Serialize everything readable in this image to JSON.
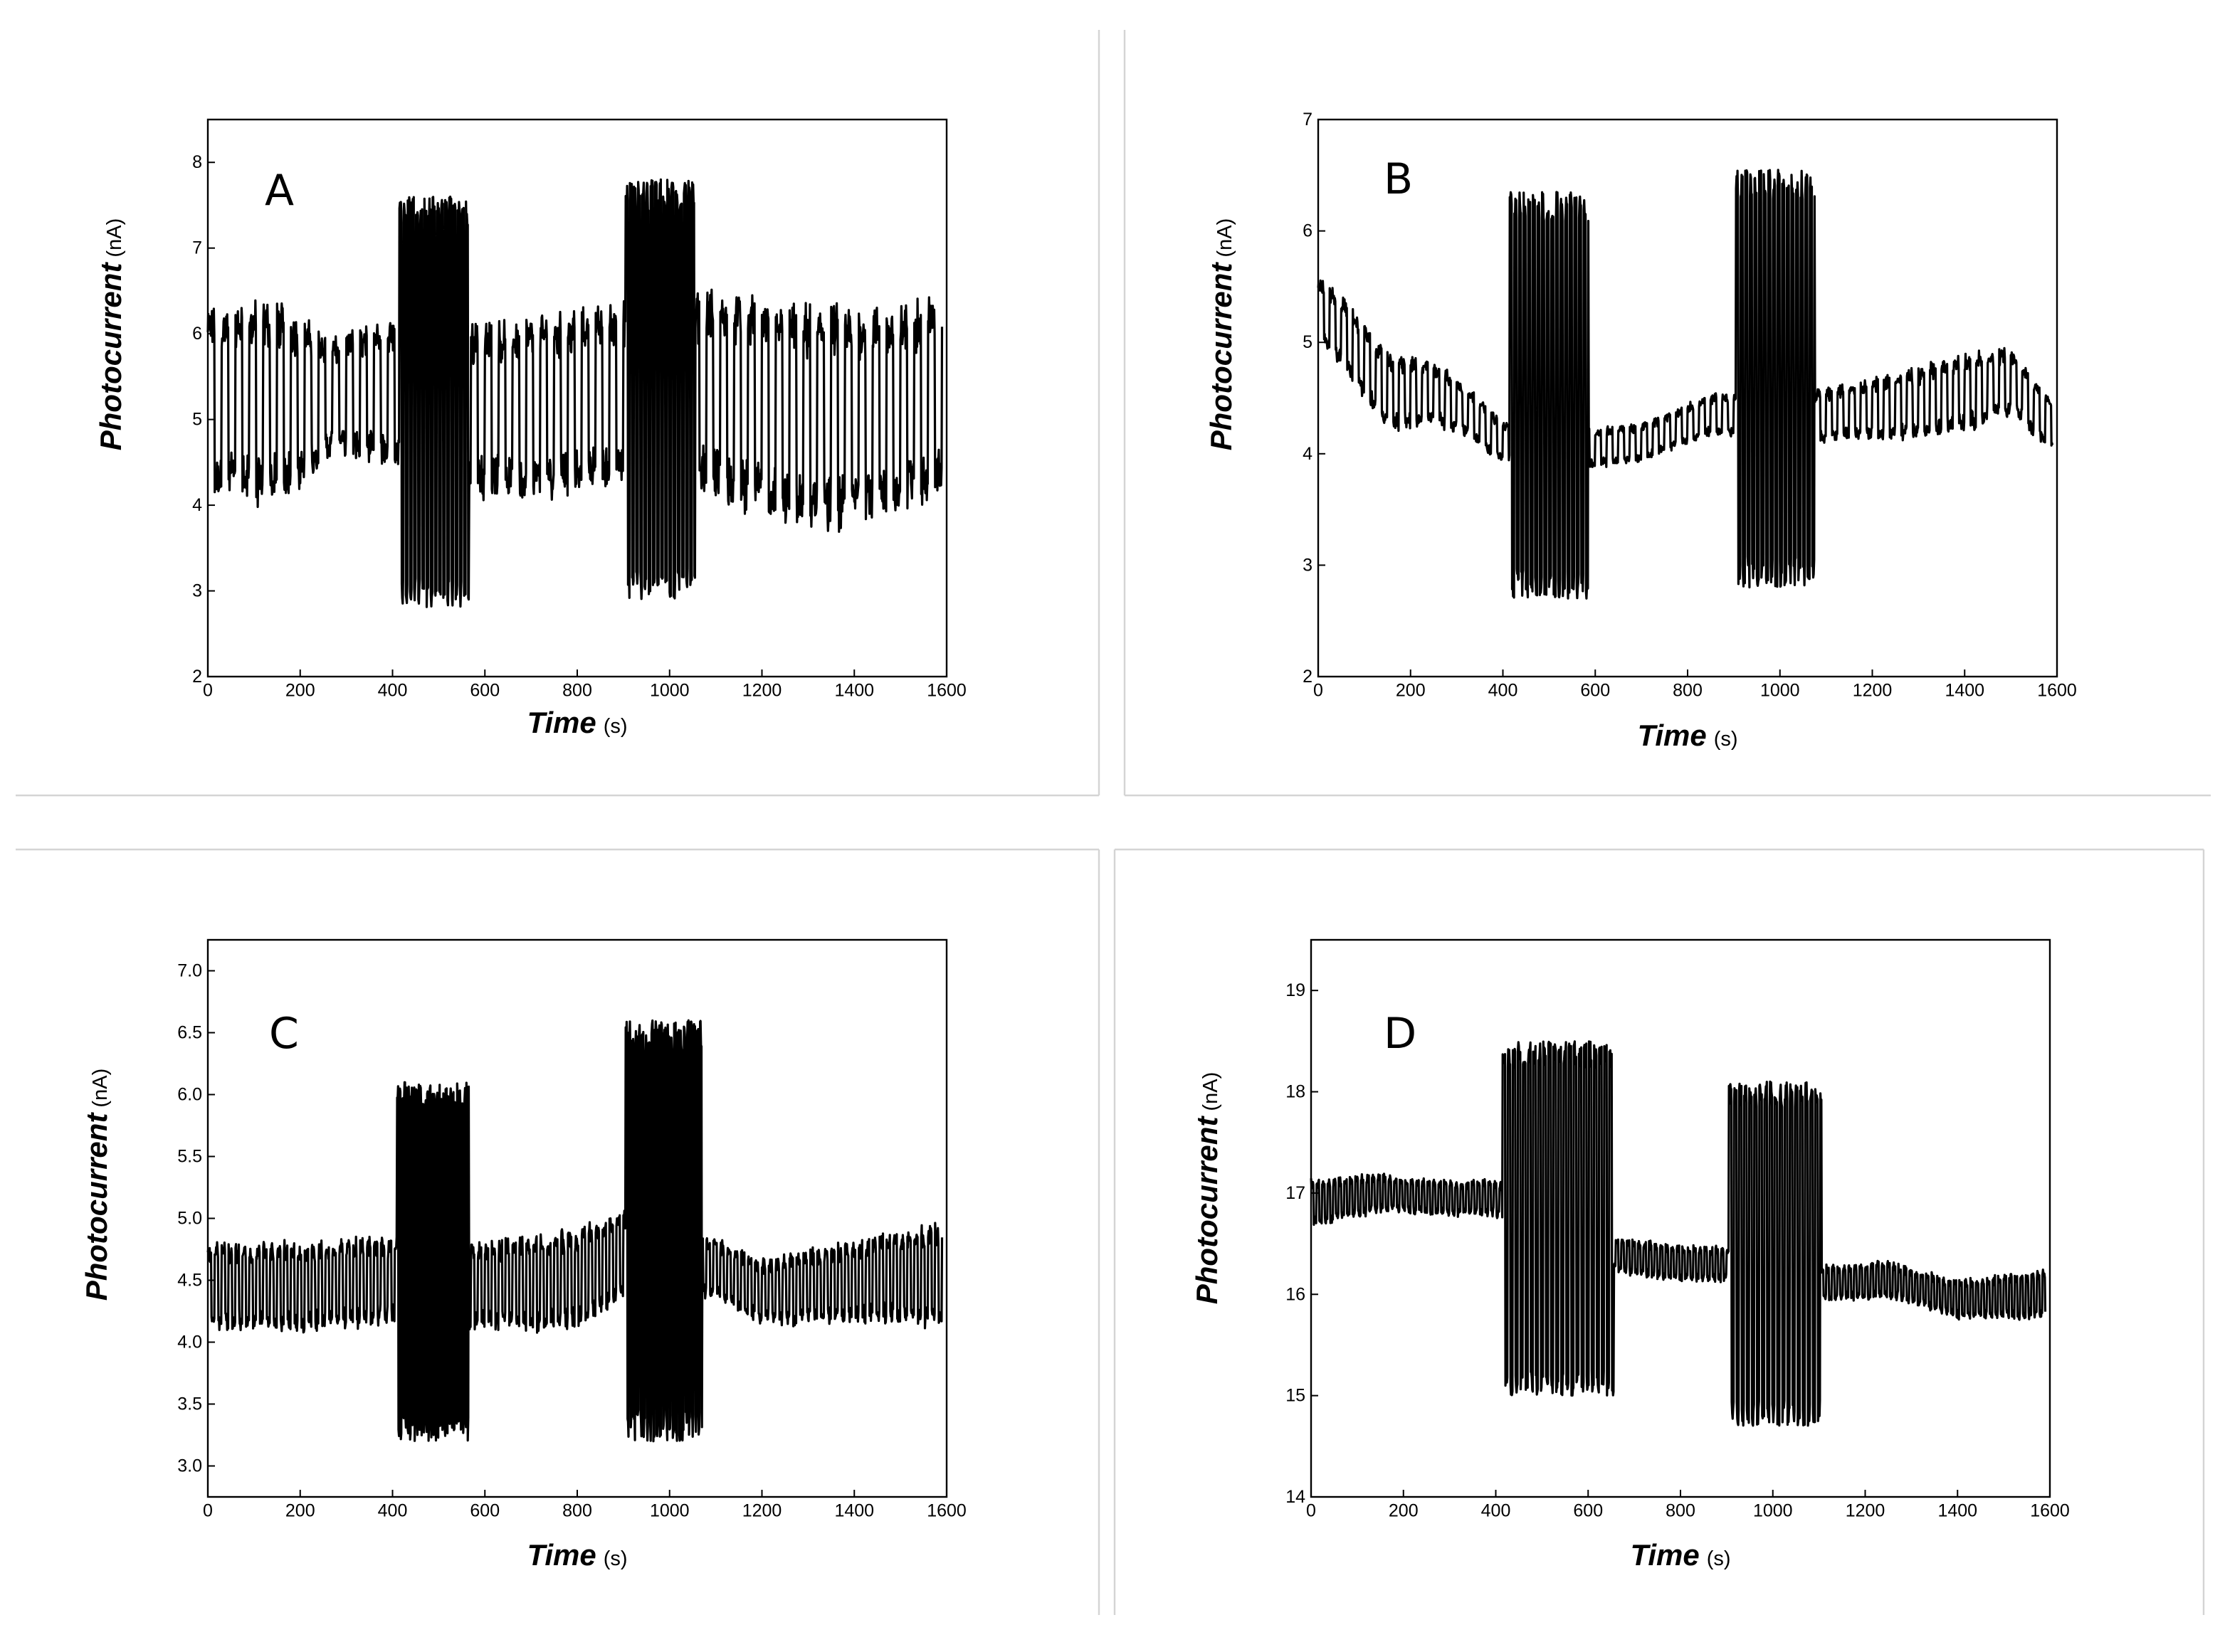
{
  "chart_data": [
    {
      "type": "line",
      "panel_label": "A",
      "xlabel": "Time",
      "xlabel_unit": "(s)",
      "ylabel": "Photocurrent",
      "ylabel_unit": "(nA)",
      "xlim": [
        0,
        1600
      ],
      "ylim": [
        2,
        8.5
      ],
      "xticks": [
        0,
        200,
        400,
        600,
        800,
        1000,
        1200,
        1400,
        1600
      ],
      "yticks": [
        2,
        3,
        4,
        5,
        6,
        7,
        8
      ],
      "ytick_labels": [
        "2",
        "3",
        "4",
        "5",
        "6",
        "7",
        "8"
      ],
      "grid": false,
      "series": [
        {
          "x_range": [
            0,
            1590
          ],
          "period_s": 30,
          "baseline": [
            [
              0,
              5.2
            ],
            [
              200,
              5.2
            ],
            [
              300,
              5.3
            ],
            [
              400,
              5.35
            ],
            [
              600,
              5.1
            ],
            [
              800,
              5.2
            ],
            [
              900,
              5.3
            ],
            [
              1100,
              5.3
            ],
            [
              1300,
              5.0
            ],
            [
              1500,
              5.1
            ],
            [
              1590,
              5.3
            ]
          ],
          "amplitude": [
            [
              0,
              0.9
            ],
            [
              150,
              1.0
            ],
            [
              280,
              0.55
            ],
            [
              400,
              0.75
            ],
            [
              600,
              0.85
            ],
            [
              900,
              0.9
            ],
            [
              1100,
              1.0
            ],
            [
              1300,
              1.1
            ],
            [
              1500,
              1.0
            ],
            [
              1590,
              1.0
            ]
          ],
          "bursts": [
            {
              "x_start": 415,
              "x_end": 565,
              "period_s": 9,
              "high": 7.6,
              "low": 2.8
            },
            {
              "x_start": 905,
              "x_end": 1055,
              "period_s": 9,
              "high": 7.8,
              "low": 2.9
            }
          ]
        }
      ]
    },
    {
      "type": "line",
      "panel_label": "B",
      "xlabel": "Time",
      "xlabel_unit": "(s)",
      "ylabel": "Photocurrent",
      "ylabel_unit": "(nA)",
      "xlim": [
        0,
        1600
      ],
      "ylim": [
        2,
        7
      ],
      "xticks": [
        0,
        200,
        400,
        600,
        800,
        1000,
        1200,
        1400,
        1600
      ],
      "yticks": [
        2,
        3,
        4,
        5,
        6,
        7
      ],
      "ytick_labels": [
        "2",
        "3",
        "4",
        "5",
        "6",
        "7"
      ],
      "grid": false,
      "series": [
        {
          "x_range": [
            0,
            1590
          ],
          "period_s": 25,
          "baseline": [
            [
              0,
              5.3
            ],
            [
              60,
              5.05
            ],
            [
              150,
              4.55
            ],
            [
              250,
              4.55
            ],
            [
              330,
              4.35
            ],
            [
              400,
              4.1
            ],
            [
              600,
              4.05
            ],
            [
              700,
              4.1
            ],
            [
              850,
              4.35
            ],
            [
              1100,
              4.35
            ],
            [
              1300,
              4.45
            ],
            [
              1500,
              4.65
            ],
            [
              1590,
              4.25
            ]
          ],
          "amplitude": [
            [
              0,
              0.25
            ],
            [
              150,
              0.3
            ],
            [
              400,
              0.15
            ],
            [
              600,
              0.15
            ],
            [
              800,
              0.15
            ],
            [
              1100,
              0.2
            ],
            [
              1400,
              0.3
            ],
            [
              1590,
              0.2
            ]
          ],
          "bursts": [
            {
              "x_start": 415,
              "x_end": 585,
              "period_s": 10,
              "high": 6.35,
              "low": 2.7
            },
            {
              "x_start": 905,
              "x_end": 1075,
              "period_s": 10,
              "high": 6.55,
              "low": 2.8
            }
          ]
        }
      ]
    },
    {
      "type": "line",
      "panel_label": "C",
      "xlabel": "Time",
      "xlabel_unit": "(s)",
      "ylabel": "Photocurrent",
      "ylabel_unit": "(nA)",
      "xlim": [
        0,
        1600
      ],
      "ylim": [
        2.75,
        7.25
      ],
      "xticks": [
        0,
        200,
        400,
        600,
        800,
        1000,
        1200,
        1400,
        1600
      ],
      "yticks": [
        3.0,
        3.5,
        4.0,
        4.5,
        5.0,
        5.5,
        6.0,
        6.5,
        7.0
      ],
      "ytick_labels": [
        "3.0",
        "3.5",
        "4.0",
        "4.5",
        "5.0",
        "5.5",
        "6.0",
        "6.5",
        "7.0"
      ],
      "grid": false,
      "series": [
        {
          "x_range": [
            0,
            1590
          ],
          "period_s": 15,
          "baseline": [
            [
              0,
              4.45
            ],
            [
              200,
              4.45
            ],
            [
              400,
              4.5
            ],
            [
              600,
              4.45
            ],
            [
              800,
              4.5
            ],
            [
              900,
              4.7
            ],
            [
              1100,
              4.6
            ],
            [
              1200,
              4.4
            ],
            [
              1300,
              4.45
            ],
            [
              1590,
              4.55
            ]
          ],
          "amplitude": [
            [
              0,
              0.3
            ],
            [
              200,
              0.3
            ],
            [
              400,
              0.3
            ],
            [
              600,
              0.3
            ],
            [
              800,
              0.35
            ],
            [
              1100,
              0.2
            ],
            [
              1300,
              0.25
            ],
            [
              1590,
              0.35
            ]
          ],
          "bursts": [
            {
              "x_start": 410,
              "x_end": 565,
              "period_s": 5,
              "high": 6.1,
              "low": 3.2
            },
            {
              "x_start": 905,
              "x_end": 1070,
              "period_s": 7,
              "high": 6.6,
              "low": 3.2
            }
          ]
        }
      ]
    },
    {
      "type": "line",
      "panel_label": "D",
      "xlabel": "Time",
      "xlabel_unit": "(s)",
      "ylabel": "Photocurrent",
      "ylabel_unit": "(nA)",
      "xlim": [
        0,
        1600
      ],
      "ylim": [
        14,
        19.5
      ],
      "xticks": [
        0,
        200,
        400,
        600,
        800,
        1000,
        1200,
        1400,
        1600
      ],
      "yticks": [
        14,
        15,
        16,
        17,
        18,
        19
      ],
      "ytick_labels": [
        "14",
        "15",
        "16",
        "17",
        "18",
        "19"
      ],
      "grid": false,
      "series": [
        {
          "x_range": [
            0,
            1590
          ],
          "period_s": 12,
          "baseline": [
            [
              0,
              16.9
            ],
            [
              150,
              17.0
            ],
            [
              300,
              16.95
            ],
            [
              400,
              16.95
            ],
            [
              650,
              16.4
            ],
            [
              800,
              16.3
            ],
            [
              900,
              16.3
            ],
            [
              1100,
              16.1
            ],
            [
              1250,
              16.15
            ],
            [
              1400,
              15.95
            ],
            [
              1590,
              16.0
            ]
          ],
          "amplitude": [
            [
              0,
              0.2
            ],
            [
              200,
              0.15
            ],
            [
              400,
              0.15
            ],
            [
              700,
              0.15
            ],
            [
              900,
              0.15
            ],
            [
              1100,
              0.15
            ],
            [
              1300,
              0.15
            ],
            [
              1590,
              0.2
            ]
          ],
          "bursts": [
            {
              "x_start": 415,
              "x_end": 655,
              "period_s": 11,
              "high": 18.5,
              "low": 15.0
            },
            {
              "x_start": 905,
              "x_end": 1105,
              "period_s": 11,
              "high": 18.1,
              "low": 14.7
            }
          ]
        }
      ]
    }
  ]
}
